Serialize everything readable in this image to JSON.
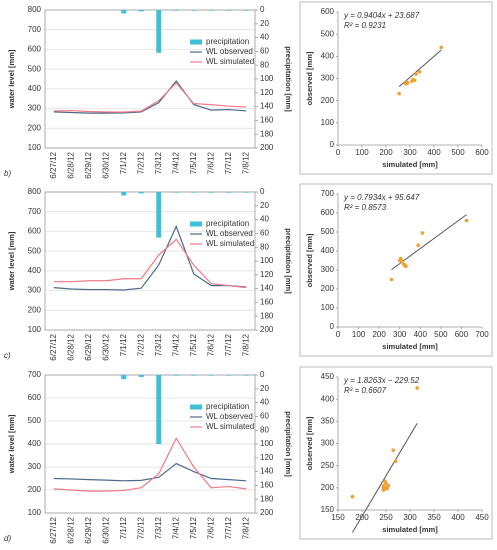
{
  "chart_data": [
    {
      "type": "line",
      "panel": "b)",
      "ylabel": "water level [mm]",
      "y2label": "precipitation [mm]",
      "categories": [
        "6/27/12",
        "6/28/12",
        "6/29/12",
        "6/30/12",
        "7/1/12",
        "7/2/12",
        "7/3/12",
        "7/4/12",
        "7/5/12",
        "7/6/12",
        "7/7/12",
        "7/8/12"
      ],
      "ylim": [
        100,
        800
      ],
      "yticks": [
        100,
        200,
        300,
        400,
        500,
        600,
        700,
        800
      ],
      "y2lim": [
        200,
        0
      ],
      "y2ticks": [
        0,
        20,
        40,
        60,
        80,
        100,
        120,
        140,
        160,
        180,
        200
      ],
      "grid": true,
      "series": [
        {
          "name": "precipitation",
          "type": "bar",
          "axis": "y2",
          "color": "#3ebfda",
          "values": [
            0,
            0,
            0,
            0,
            5,
            2,
            62,
            1,
            1,
            1,
            1,
            1
          ]
        },
        {
          "name": "WL observed",
          "color": "#4a6a8a",
          "values": [
            283,
            280,
            277,
            277,
            278,
            283,
            330,
            440,
            320,
            292,
            295,
            288
          ]
        },
        {
          "name": "WL simulated",
          "color": "#f07a86",
          "values": [
            288,
            290,
            285,
            283,
            282,
            287,
            340,
            430,
            325,
            320,
            312,
            308
          ]
        }
      ]
    },
    {
      "type": "scatter",
      "xlabel": "simulated [mm]",
      "ylabel": "observed [mm]",
      "xlim": [
        0,
        600
      ],
      "xticks": [
        0,
        100,
        200,
        300,
        400,
        500,
        600
      ],
      "ylim": [
        0,
        600
      ],
      "yticks": [
        0,
        100,
        200,
        300,
        400,
        500,
        600
      ],
      "series": [
        {
          "color": "#f0a030",
          "x": [
            283,
            290,
            285,
            283,
            282,
            287,
            340,
            430,
            325,
            320,
            312,
            308,
            255
          ],
          "y": [
            283,
            280,
            277,
            277,
            278,
            283,
            330,
            440,
            320,
            292,
            295,
            288,
            232
          ]
        }
      ],
      "trendline": {
        "equation": "y = 0.9404x + 23.687",
        "r2": "R² = 0.9231",
        "slope": 0.9404,
        "intercept": 23.687,
        "color": "#555"
      }
    },
    {
      "type": "line",
      "panel": "c)",
      "ylabel": "water level [mm]",
      "y2label": "precipitation [mm]",
      "categories": [
        "6/27/12",
        "6/28/12",
        "6/29/12",
        "6/30/12",
        "7/1/12",
        "7/2/12",
        "7/3/12",
        "7/4/12",
        "7/5/12",
        "7/6/12",
        "7/7/12",
        "7/8/12"
      ],
      "ylim": [
        100,
        800
      ],
      "yticks": [
        100,
        200,
        300,
        400,
        500,
        600,
        700,
        800
      ],
      "y2lim": [
        200,
        0
      ],
      "y2ticks": [
        0,
        20,
        40,
        60,
        80,
        100,
        120,
        140,
        160,
        180,
        200
      ],
      "grid": true,
      "series": [
        {
          "name": "precipitation",
          "type": "bar",
          "axis": "y2",
          "color": "#3ebfda",
          "values": [
            0,
            0,
            0,
            0,
            5,
            2,
            66,
            1,
            1,
            1,
            1,
            1
          ]
        },
        {
          "name": "WL observed",
          "color": "#4a6a8a",
          "values": [
            315,
            308,
            305,
            305,
            303,
            312,
            430,
            625,
            385,
            325,
            325,
            318
          ]
        },
        {
          "name": "WL simulated",
          "color": "#f07a86",
          "values": [
            345,
            345,
            350,
            350,
            360,
            360,
            480,
            560,
            430,
            335,
            325,
            315
          ]
        }
      ]
    },
    {
      "type": "scatter",
      "xlabel": "simulated [mm]",
      "ylabel": "observed [mm]",
      "xlim": [
        0,
        700
      ],
      "xticks": [
        0,
        100,
        200,
        300,
        400,
        500,
        600,
        700
      ],
      "ylim": [
        0,
        700
      ],
      "yticks": [
        0,
        100,
        200,
        300,
        400,
        500,
        600,
        700
      ],
      "series": [
        {
          "color": "#f0a030",
          "x": [
            260,
            300,
            305,
            310,
            320,
            325,
            330,
            390,
            410,
            625
          ],
          "y": [
            250,
            350,
            360,
            345,
            330,
            325,
            320,
            430,
            495,
            560
          ]
        }
      ],
      "trendline": {
        "equation": "y = 0.7934x + 95.647",
        "r2": "R² = 0.8573",
        "slope": 0.7934,
        "intercept": 95.647,
        "color": "#555"
      }
    },
    {
      "type": "line",
      "panel": "d)",
      "ylabel": "water level [mm]",
      "y2label": "precipitation [mm]",
      "categories": [
        "6/27/12",
        "6/28/12",
        "6/29/12",
        "6/30/12",
        "7/1/12",
        "7/2/12",
        "7/3/12",
        "7/4/12",
        "7/5/12",
        "7/6/12",
        "7/7/12",
        "7/8/12"
      ],
      "ylim": [
        100,
        700
      ],
      "yticks": [
        100,
        200,
        300,
        400,
        500,
        600,
        700
      ],
      "y2lim": [
        200,
        0
      ],
      "y2ticks": [
        0,
        20,
        40,
        60,
        80,
        100,
        120,
        140,
        160,
        180,
        200
      ],
      "grid": true,
      "series": [
        {
          "name": "precipitation",
          "type": "bar",
          "axis": "y2",
          "color": "#3ebfda",
          "values": [
            0,
            0,
            0,
            0,
            6,
            3,
            100,
            1,
            1,
            1,
            1,
            1
          ]
        },
        {
          "name": "WL observed",
          "color": "#4a6a8a",
          "values": [
            250,
            248,
            245,
            243,
            240,
            242,
            255,
            315,
            280,
            250,
            245,
            240
          ]
        },
        {
          "name": "WL simulated",
          "color": "#f07a86",
          "values": [
            205,
            200,
            195,
            195,
            198,
            210,
            270,
            425,
            300,
            210,
            215,
            205
          ]
        }
      ]
    },
    {
      "type": "scatter",
      "xlabel": "simulated [mm]",
      "ylabel": "observed [mm]",
      "xlim": [
        150,
        450
      ],
      "xticks": [
        150,
        200,
        250,
        300,
        350,
        400,
        450
      ],
      "ylim": [
        150,
        450
      ],
      "yticks": [
        150,
        200,
        250,
        300,
        350,
        400,
        450
      ],
      "series": [
        {
          "color": "#f0a030",
          "x": [
            180,
            245,
            245,
            250,
            248,
            255,
            265,
            270,
            315,
            250,
            245,
            252
          ],
          "y": [
            180,
            195,
            205,
            210,
            215,
            205,
            285,
            260,
            425,
            200,
            200,
            198
          ]
        }
      ],
      "trendline": {
        "equation": "y = 1.8263x − 229.52",
        "r2": "R² = 0.6607",
        "slope": 1.8263,
        "intercept": -229.52,
        "color": "#555"
      }
    }
  ]
}
